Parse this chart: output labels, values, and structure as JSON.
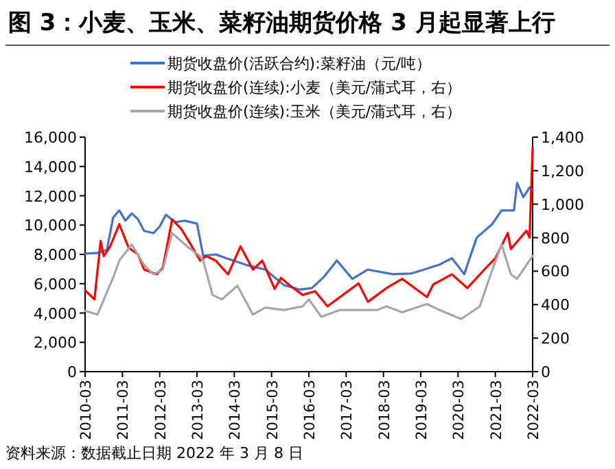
{
  "chart_data": {
    "type": "line",
    "title": "图 3：小麦、玉米、菜籽油期货价格 3 月起显著上行",
    "annotations": [
      "资料来源：数据截止日期 2022 年 3 月 8 日"
    ],
    "legend": "top",
    "grid": false,
    "marker": "none",
    "line_style": "solid",
    "xlim": [
      "2010-03",
      "2022-03"
    ],
    "xticks": [
      "2010-03",
      "2011-03",
      "2012-03",
      "2013-03",
      "2014-03",
      "2015-03",
      "2016-03",
      "2017-03",
      "2018-03",
      "2019-03",
      "2020-03",
      "2021-03",
      "2022-03"
    ],
    "ylim": [
      0,
      16000
    ],
    "yticks": [
      0,
      {
        "value": 2000,
        "label": "2,000"
      },
      {
        "value": 4000,
        "label": "4,000"
      },
      {
        "value": 6000,
        "label": "6,000"
      },
      {
        "value": 8000,
        "label": "8,000"
      },
      {
        "value": 10000,
        "label": "10,000"
      },
      {
        "value": 12000,
        "label": "12,000"
      },
      {
        "value": 14000,
        "label": "14,000"
      },
      {
        "value": 16000,
        "label": "16,000"
      }
    ],
    "y2lim": [
      0,
      1400
    ],
    "y2ticks": [
      0,
      200,
      400,
      600,
      800,
      {
        "value": 1000,
        "label": "1,000"
      },
      {
        "value": 1200,
        "label": "1,200"
      },
      {
        "value": 1400,
        "label": "1,400"
      }
    ],
    "series": [
      {
        "name": "期货收盘价(活跃合约):菜籽油（元/吨）",
        "color": "#4472c4",
        "x": [
          "2010-03",
          "2010-07",
          "2010-10",
          "2010-12",
          "2011-02",
          "2011-04",
          "2011-06",
          "2011-08",
          "2011-10",
          "2012-01",
          "2012-03",
          "2012-05",
          "2012-08",
          "2012-11",
          "2013-03",
          "2013-05",
          "2013-09",
          "2014-01",
          "2014-07",
          "2015-01",
          "2015-07",
          "2015-12",
          "2016-04",
          "2016-08",
          "2016-12",
          "2017-05",
          "2017-10",
          "2018-06",
          "2018-12",
          "2019-04",
          "2019-09",
          "2020-01",
          "2020-05",
          "2020-09",
          "2021-02",
          "2021-05",
          "2021-09",
          "2021-10",
          "2021-12",
          "2022-02",
          "2022-03"
        ],
        "values": [
          8050,
          8100,
          8300,
          10500,
          11000,
          10300,
          10800,
          10400,
          9600,
          9450,
          9900,
          10700,
          10200,
          10300,
          10100,
          7900,
          8000,
          7700,
          7270,
          6960,
          5900,
          5600,
          5700,
          6500,
          7580,
          6330,
          6960,
          6650,
          6700,
          6960,
          7300,
          7740,
          6650,
          9140,
          10070,
          11000,
          11000,
          12880,
          11900,
          12570,
          12400
        ]
      },
      {
        "name": "期货收盘价(连续):小麦（美元/蒲式耳，右）",
        "color": "#ff0000",
        "axis": "y2",
        "x": [
          "2010-03",
          "2010-06",
          "2010-08",
          "2010-09",
          "2010-11",
          "2011-02",
          "2011-05",
          "2011-08",
          "2011-10",
          "2012-02",
          "2012-04",
          "2012-07",
          "2012-10",
          "2013-01",
          "2013-04",
          "2013-06",
          "2013-09",
          "2014-01",
          "2014-05",
          "2014-09",
          "2014-12",
          "2015-04",
          "2015-06",
          "2015-09",
          "2016-01",
          "2016-05",
          "2016-09",
          "2017-01",
          "2017-07",
          "2017-10",
          "2018-04",
          "2018-09",
          "2019-05",
          "2019-07",
          "2020-01",
          "2020-06",
          "2020-12",
          "2021-03",
          "2021-07",
          "2021-08",
          "2022-01",
          "2022-02",
          "2022-03"
        ],
        "values": [
          486,
          431,
          780,
          690,
          745,
          880,
          740,
          700,
          609,
          581,
          620,
          909,
          850,
          759,
          663,
          690,
          663,
          581,
          748,
          609,
          663,
          494,
          560,
          513,
          458,
          480,
          390,
          445,
          527,
          417,
          499,
          554,
          445,
          520,
          581,
          499,
          620,
          677,
          827,
          732,
          841,
          800,
          1337
        ]
      },
      {
        "name": "期货收盘价(连续):玉米（美元/蒲式耳，右）",
        "color": "#a6a6a6",
        "axis": "y2",
        "x": [
          "2010-03",
          "2010-07",
          "2010-12",
          "2011-02",
          "2011-06",
          "2011-10",
          "2012-01",
          "2012-04",
          "2012-07",
          "2012-12",
          "2013-04",
          "2013-05",
          "2013-08",
          "2013-11",
          "2014-04",
          "2014-09",
          "2015-01",
          "2015-07",
          "2016-01",
          "2016-03",
          "2016-07",
          "2017-01",
          "2018-01",
          "2018-04",
          "2018-09",
          "2019-05",
          "2019-09",
          "2020-04",
          "2020-10",
          "2021-01",
          "2021-05",
          "2021-08",
          "2021-10",
          "2022-01",
          "2022-03"
        ],
        "values": [
          363,
          341,
          560,
          663,
          759,
          636,
          581,
          609,
          827,
          745,
          690,
          663,
          458,
          431,
          513,
          341,
          382,
          368,
          390,
          431,
          327,
          368,
          368,
          390,
          354,
          404,
          368,
          314,
          390,
          554,
          759,
          581,
          554,
          636,
          690
        ]
      }
    ]
  }
}
